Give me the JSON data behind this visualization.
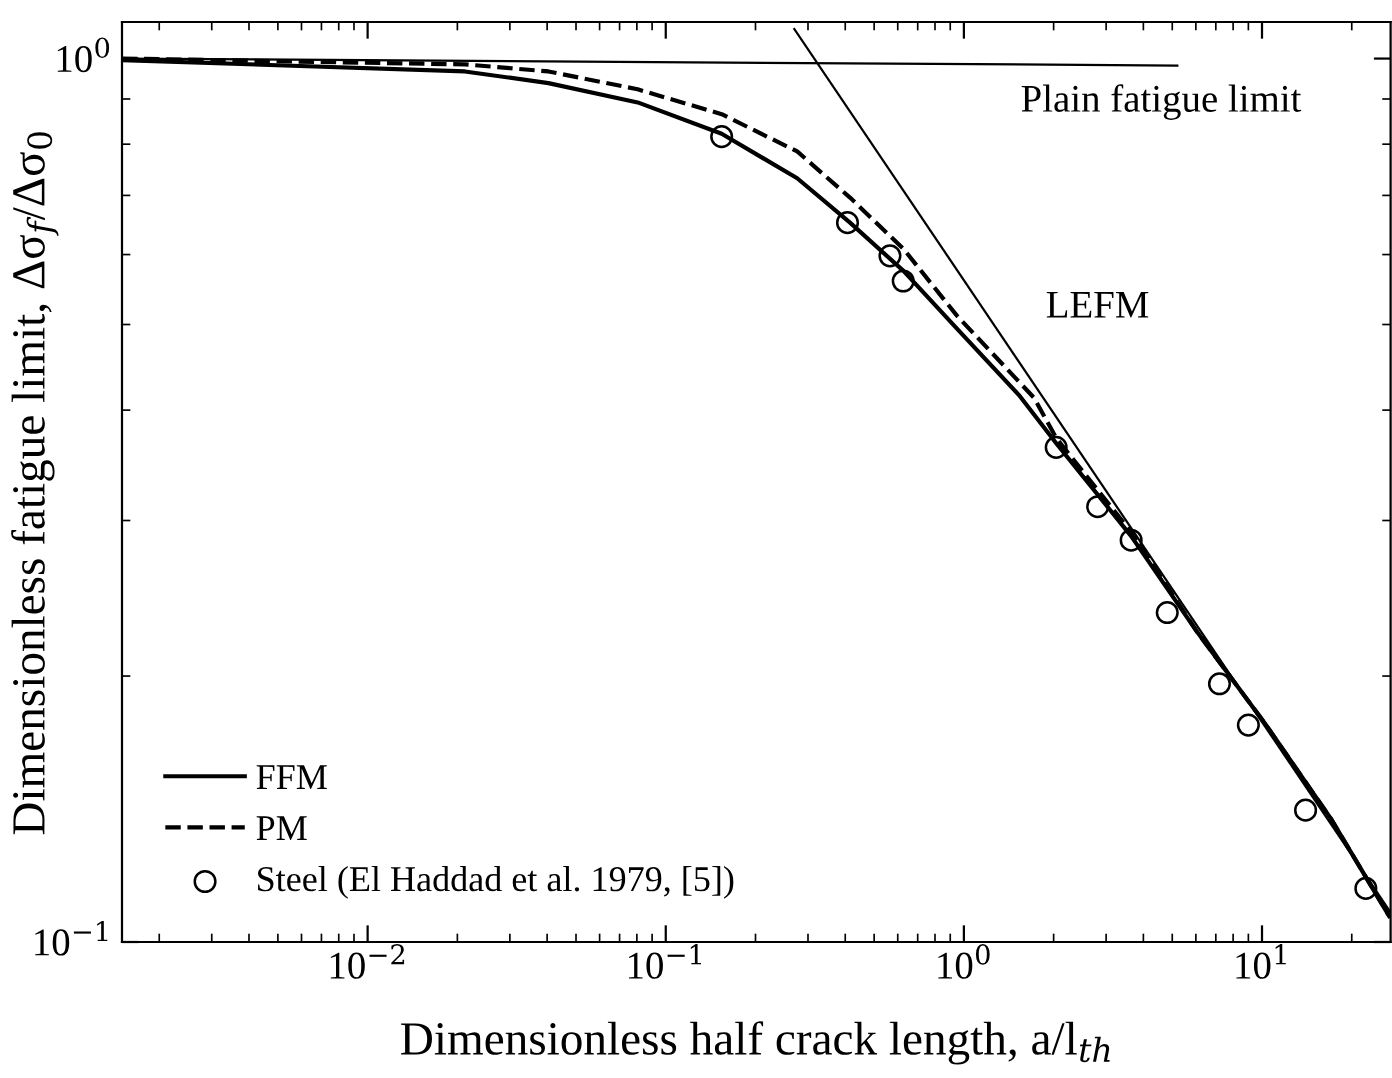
{
  "chart_data": {
    "type": "line",
    "xlabel": "Dimensionless half crack length, a/l$_{th}$",
    "ylabel": "Dimensionless fatigue limit, Δσ$_{f}$/Δσ$_{0}$",
    "log": "xy",
    "xlim": [
      0.0015,
      27
    ],
    "ylim": [
      0.1,
      1.1
    ],
    "xticks": [
      {
        "value": 0.01,
        "label": "10$^{−2}$"
      },
      {
        "value": 0.1,
        "label": "10$^{−1}$"
      },
      {
        "value": 1,
        "label": "10$^{0}$"
      },
      {
        "value": 10,
        "label": "10$^{1}$"
      }
    ],
    "yticks": [
      {
        "value": 0.1,
        "label": "10$^{−1}$"
      },
      {
        "value": 1,
        "label": "10$^{0}$"
      }
    ],
    "grid": false,
    "legend": "bottom left",
    "series": [
      {
        "name": "FFM",
        "type": "line",
        "line_style": "solid",
        "color": "#000000",
        "x": [
          0.0015,
          0.0212,
          0.0404,
          0.0805,
          0.154,
          0.276,
          0.415,
          0.627,
          0.946,
          1.53,
          2.04,
          3.64,
          6.08,
          10.2,
          17.0,
          26.7
        ],
        "values": [
          0.996,
          0.967,
          0.938,
          0.892,
          0.822,
          0.732,
          0.652,
          0.575,
          0.495,
          0.416,
          0.367,
          0.288,
          0.224,
          0.177,
          0.138,
          0.107
        ]
      },
      {
        "name": "PM",
        "type": "line",
        "line_style": "dashed",
        "color": "#000000",
        "x": [
          0.0015,
          0.0212,
          0.0404,
          0.0805,
          0.154,
          0.276,
          0.415,
          0.627,
          0.946,
          1.72,
          2.04,
          3.64,
          6.08,
          10.2,
          17.0,
          26.7
        ],
        "values": [
          1.0,
          0.985,
          0.967,
          0.923,
          0.865,
          0.785,
          0.696,
          0.609,
          0.512,
          0.413,
          0.372,
          0.291,
          0.224,
          0.177,
          0.138,
          0.107
        ]
      },
      {
        "name": "Steel (El Haddad et al. 1979, [5])",
        "type": "scatter",
        "marker": "circle",
        "color": "#000000",
        "x": [
          0.154,
          0.407,
          0.565,
          0.626,
          2.04,
          2.81,
          3.64,
          4.81,
          7.2,
          9.0,
          14.0,
          22.3
        ],
        "values": [
          0.816,
          0.652,
          0.598,
          0.56,
          0.363,
          0.311,
          0.285,
          0.236,
          0.196,
          0.176,
          0.141,
          0.115
        ]
      },
      {
        "line_style": "solid",
        "color": "#000000",
        "x": [
          0.0015,
          5.2
        ],
        "values": [
          1.0,
          0.982
        ]
      },
      {
        "line_style": "solid",
        "color": "#000000",
        "x": [
          0.27,
          27
        ],
        "values": [
          1.08,
          0.108
        ]
      }
    ],
    "annotations": [
      "Plain fatigue limit",
      "LEFM"
    ]
  }
}
